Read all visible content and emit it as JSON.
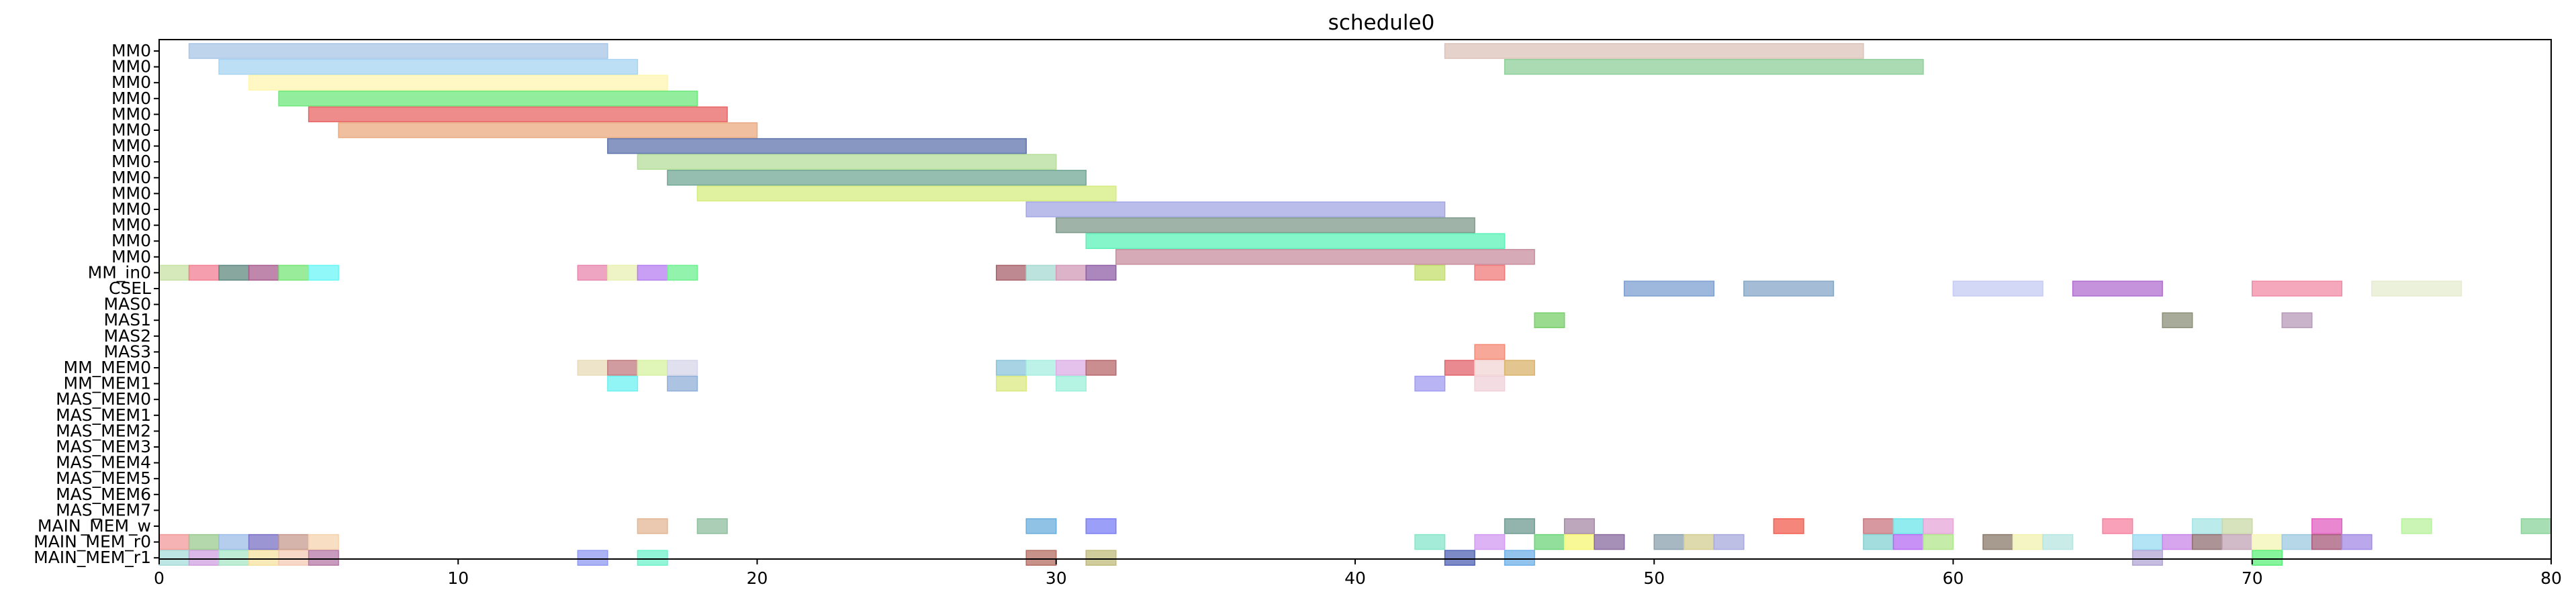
{
  "chart_data": {
    "type": "gantt",
    "title": "schedule0",
    "xlim": [
      0,
      80
    ],
    "xticks": [
      0,
      10,
      20,
      30,
      40,
      50,
      60,
      70,
      80
    ],
    "grid": false,
    "rows": [
      "MM0",
      "MM0",
      "MM0",
      "MM0",
      "MM0",
      "MM0",
      "MM0",
      "MM0",
      "MM0",
      "MM0",
      "MM0",
      "MM0",
      "MM0",
      "MM0",
      "MM_in0",
      "CSEL",
      "MAS0",
      "MAS1",
      "MAS2",
      "MAS3",
      "MM_MEM0",
      "MM_MEM1",
      "MAS_MEM0",
      "MAS_MEM1",
      "MAS_MEM2",
      "MAS_MEM3",
      "MAS_MEM4",
      "MAS_MEM5",
      "MAS_MEM6",
      "MAS_MEM7",
      "MAIN_MEM_w",
      "MAIN_MEM_r0",
      "MAIN_MEM_r1"
    ],
    "tasks": [
      {
        "row": 0,
        "start": 1,
        "end": 15,
        "color": "#a8c6e6"
      },
      {
        "row": 0,
        "start": 43,
        "end": 57,
        "color": "#dcc3b8"
      },
      {
        "row": 1,
        "start": 2,
        "end": 16,
        "color": "#a6d4f2"
      },
      {
        "row": 1,
        "start": 45,
        "end": 59,
        "color": "#8fcf9a"
      },
      {
        "row": 2,
        "start": 3,
        "end": 17,
        "color": "#fff6b0"
      },
      {
        "row": 3,
        "start": 4,
        "end": 18,
        "color": "#6ee87c"
      },
      {
        "row": 4,
        "start": 5,
        "end": 19,
        "color": "#e86464"
      },
      {
        "row": 5,
        "start": 6,
        "end": 20,
        "color": "#e9aa80"
      },
      {
        "row": 6,
        "start": 15,
        "end": 29,
        "color": "#5f74ad"
      },
      {
        "row": 7,
        "start": 16,
        "end": 30,
        "color": "#b5de9a"
      },
      {
        "row": 8,
        "start": 17,
        "end": 31,
        "color": "#72a895"
      },
      {
        "row": 9,
        "start": 18,
        "end": 32,
        "color": "#d5ec7f"
      },
      {
        "row": 10,
        "start": 29,
        "end": 43,
        "color": "#a3a6e3"
      },
      {
        "row": 11,
        "start": 30,
        "end": 44,
        "color": "#7f9a8b"
      },
      {
        "row": 12,
        "start": 31,
        "end": 45,
        "color": "#5cf2b8"
      },
      {
        "row": 13,
        "start": 32,
        "end": 46,
        "color": "#c88e9e"
      },
      {
        "row": 14,
        "start": 0,
        "end": 1,
        "color": "#c7e2a3"
      },
      {
        "row": 14,
        "start": 1,
        "end": 2,
        "color": "#f27f93"
      },
      {
        "row": 14,
        "start": 2,
        "end": 3,
        "color": "#5f8a7f"
      },
      {
        "row": 14,
        "start": 3,
        "end": 4,
        "color": "#a85f8f"
      },
      {
        "row": 14,
        "start": 4,
        "end": 5,
        "color": "#77e677"
      },
      {
        "row": 14,
        "start": 5,
        "end": 6,
        "color": "#6bf6f6"
      },
      {
        "row": 14,
        "start": 14,
        "end": 15,
        "color": "#e887ad"
      },
      {
        "row": 14,
        "start": 15,
        "end": 16,
        "color": "#e8f0b2"
      },
      {
        "row": 14,
        "start": 16,
        "end": 17,
        "color": "#b67ff0"
      },
      {
        "row": 14,
        "start": 17,
        "end": 18,
        "color": "#6ef090"
      },
      {
        "row": 14,
        "start": 28,
        "end": 29,
        "color": "#a8626b"
      },
      {
        "row": 14,
        "start": 29,
        "end": 30,
        "color": "#a6dad1"
      },
      {
        "row": 14,
        "start": 30,
        "end": 31,
        "color": "#d19ab8"
      },
      {
        "row": 14,
        "start": 31,
        "end": 32,
        "color": "#8f5fa8"
      },
      {
        "row": 14,
        "start": 42,
        "end": 43,
        "color": "#c3df6b"
      },
      {
        "row": 14,
        "start": 44,
        "end": 45,
        "color": "#f07a7a"
      },
      {
        "row": 15,
        "start": 49,
        "end": 52,
        "color": "#7d9fd1"
      },
      {
        "row": 15,
        "start": 53,
        "end": 56,
        "color": "#86a6c8"
      },
      {
        "row": 15,
        "start": 60,
        "end": 63,
        "color": "#c6cbf4"
      },
      {
        "row": 15,
        "start": 64,
        "end": 67,
        "color": "#b06fcf"
      },
      {
        "row": 15,
        "start": 70,
        "end": 73,
        "color": "#f28aa6"
      },
      {
        "row": 15,
        "start": 74,
        "end": 77,
        "color": "#e5ecd0"
      },
      {
        "row": 17,
        "start": 46,
        "end": 47,
        "color": "#79cf6b"
      },
      {
        "row": 17,
        "start": 67,
        "end": 68,
        "color": "#8c8f78"
      },
      {
        "row": 17,
        "start": 71,
        "end": 72,
        "color": "#b79ab9"
      },
      {
        "row": 19,
        "start": 44,
        "end": 45,
        "color": "#f58b77"
      },
      {
        "row": 20,
        "start": 14,
        "end": 15,
        "color": "#e7dbb7"
      },
      {
        "row": 20,
        "start": 15,
        "end": 16,
        "color": "#c27b7f"
      },
      {
        "row": 20,
        "start": 16,
        "end": 17,
        "color": "#d6f2a0"
      },
      {
        "row": 20,
        "start": 17,
        "end": 18,
        "color": "#d6d6ea"
      },
      {
        "row": 20,
        "start": 28,
        "end": 29,
        "color": "#8ac4dc"
      },
      {
        "row": 20,
        "start": 29,
        "end": 30,
        "color": "#a6eedf"
      },
      {
        "row": 20,
        "start": 30,
        "end": 31,
        "color": "#dbaee5"
      },
      {
        "row": 20,
        "start": 31,
        "end": 32,
        "color": "#b8686b"
      },
      {
        "row": 20,
        "start": 43,
        "end": 44,
        "color": "#e2636b"
      },
      {
        "row": 20,
        "start": 44,
        "end": 45,
        "color": "#f1d4d4"
      },
      {
        "row": 20,
        "start": 45,
        "end": 46,
        "color": "#d9b36a"
      },
      {
        "row": 21,
        "start": 15,
        "end": 16,
        "color": "#6ef1f1"
      },
      {
        "row": 21,
        "start": 17,
        "end": 18,
        "color": "#92afd8"
      },
      {
        "row": 21,
        "start": 28,
        "end": 29,
        "color": "#dbe982"
      },
      {
        "row": 21,
        "start": 30,
        "end": 31,
        "color": "#9cf0da"
      },
      {
        "row": 21,
        "start": 42,
        "end": 43,
        "color": "#a19cf0"
      },
      {
        "row": 21,
        "start": 44,
        "end": 45,
        "color": "#f0d1d8"
      },
      {
        "row": 30,
        "start": 16,
        "end": 17,
        "color": "#e3b796"
      },
      {
        "row": 30,
        "start": 18,
        "end": 19,
        "color": "#8fbf9e"
      },
      {
        "row": 30,
        "start": 29,
        "end": 30,
        "color": "#6aaedb"
      },
      {
        "row": 30,
        "start": 31,
        "end": 32,
        "color": "#7b7ff5"
      },
      {
        "row": 30,
        "start": 45,
        "end": 46,
        "color": "#6f9b91"
      },
      {
        "row": 30,
        "start": 47,
        "end": 48,
        "color": "#a58aa6"
      },
      {
        "row": 30,
        "start": 54,
        "end": 55,
        "color": "#f25e4f"
      },
      {
        "row": 30,
        "start": 57,
        "end": 58,
        "color": "#c9777f"
      },
      {
        "row": 30,
        "start": 58,
        "end": 59,
        "color": "#6be6e8"
      },
      {
        "row": 30,
        "start": 59,
        "end": 60,
        "color": "#e6a6d9"
      },
      {
        "row": 30,
        "start": 65,
        "end": 66,
        "color": "#f582a0"
      },
      {
        "row": 30,
        "start": 68,
        "end": 69,
        "color": "#a6e4e6"
      },
      {
        "row": 30,
        "start": 69,
        "end": 70,
        "color": "#c9d9a6"
      },
      {
        "row": 30,
        "start": 72,
        "end": 73,
        "color": "#e260c0"
      },
      {
        "row": 30,
        "start": 75,
        "end": 76,
        "color": "#b8f29c"
      },
      {
        "row": 30,
        "start": 79,
        "end": 80,
        "color": "#8bd39a"
      },
      {
        "row": 31,
        "start": 0,
        "end": 1,
        "color": "#f29a9a"
      },
      {
        "row": 31,
        "start": 1,
        "end": 2,
        "color": "#9bc98f"
      },
      {
        "row": 31,
        "start": 2,
        "end": 3,
        "color": "#9cbde8"
      },
      {
        "row": 31,
        "start": 3,
        "end": 4,
        "color": "#7a72c4"
      },
      {
        "row": 31,
        "start": 4,
        "end": 5,
        "color": "#c79b8f"
      },
      {
        "row": 31,
        "start": 5,
        "end": 6,
        "color": "#f5d3ad"
      },
      {
        "row": 31,
        "start": 42,
        "end": 43,
        "color": "#86e6c9"
      },
      {
        "row": 31,
        "start": 44,
        "end": 45,
        "color": "#d29af2"
      },
      {
        "row": 31,
        "start": 46,
        "end": 47,
        "color": "#6dd47a"
      },
      {
        "row": 31,
        "start": 47,
        "end": 48,
        "color": "#f5f573"
      },
      {
        "row": 31,
        "start": 48,
        "end": 49,
        "color": "#8a6ba0"
      },
      {
        "row": 31,
        "start": 50,
        "end": 51,
        "color": "#8ba0ad"
      },
      {
        "row": 31,
        "start": 51,
        "end": 52,
        "color": "#d3cd91"
      },
      {
        "row": 31,
        "start": 52,
        "end": 53,
        "color": "#a7a9dc"
      },
      {
        "row": 31,
        "start": 57,
        "end": 58,
        "color": "#85d2d3"
      },
      {
        "row": 31,
        "start": 58,
        "end": 59,
        "color": "#b56cf2"
      },
      {
        "row": 31,
        "start": 59,
        "end": 60,
        "color": "#b1e58c"
      },
      {
        "row": 31,
        "start": 61,
        "end": 62,
        "color": "#8a7a6b"
      },
      {
        "row": 31,
        "start": 62,
        "end": 63,
        "color": "#f2f2b0"
      },
      {
        "row": 31,
        "start": 63,
        "end": 64,
        "color": "#b7e6e2"
      },
      {
        "row": 31,
        "start": 66,
        "end": 67,
        "color": "#99dbf2"
      },
      {
        "row": 31,
        "start": 67,
        "end": 68,
        "color": "#c887e8"
      },
      {
        "row": 31,
        "start": 68,
        "end": 69,
        "color": "#8f6f73"
      },
      {
        "row": 31,
        "start": 69,
        "end": 70,
        "color": "#c3a4b7"
      },
      {
        "row": 31,
        "start": 70,
        "end": 71,
        "color": "#f4f5b6"
      },
      {
        "row": 31,
        "start": 71,
        "end": 72,
        "color": "#9ec9e0"
      },
      {
        "row": 31,
        "start": 72,
        "end": 73,
        "color": "#a5597a"
      },
      {
        "row": 31,
        "start": 73,
        "end": 74,
        "color": "#a38ae6"
      },
      {
        "row": 32,
        "start": 0,
        "end": 1,
        "color": "#a7dcd9"
      },
      {
        "row": 32,
        "start": 1,
        "end": 2,
        "color": "#cfa0e0"
      },
      {
        "row": 32,
        "start": 2,
        "end": 3,
        "color": "#a8e6c5"
      },
      {
        "row": 32,
        "start": 3,
        "end": 4,
        "color": "#f5e2a0"
      },
      {
        "row": 32,
        "start": 4,
        "end": 5,
        "color": "#f4c9b4"
      },
      {
        "row": 32,
        "start": 5,
        "end": 6,
        "color": "#b57aa8"
      },
      {
        "row": 32,
        "start": 14,
        "end": 15,
        "color": "#8f9af0"
      },
      {
        "row": 32,
        "start": 16,
        "end": 17,
        "color": "#6ef2cb"
      },
      {
        "row": 32,
        "start": 29,
        "end": 30,
        "color": "#b36e63"
      },
      {
        "row": 32,
        "start": 31,
        "end": 32,
        "color": "#c1bb7a"
      },
      {
        "row": 32,
        "start": 43,
        "end": 44,
        "color": "#5163b5"
      },
      {
        "row": 32,
        "start": 45,
        "end": 46,
        "color": "#6fb0e8"
      },
      {
        "row": 32,
        "start": 66,
        "end": 67,
        "color": "#b2a5d6"
      },
      {
        "row": 32,
        "start": 70,
        "end": 71,
        "color": "#5cf07a"
      }
    ]
  }
}
